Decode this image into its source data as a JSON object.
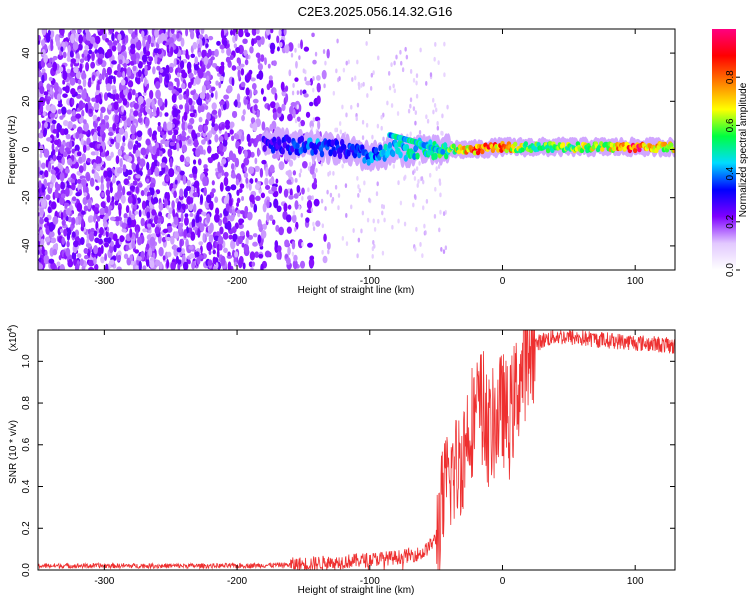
{
  "title": "C2E3.2025.056.14.32.G16",
  "chart_data": [
    {
      "type": "heatmap",
      "xlabel": "Height of straight line (km)",
      "ylabel": "Frequency (Hz)",
      "xlim": [
        -350,
        130
      ],
      "ylim": [
        -50,
        50
      ],
      "xticks": [
        -300,
        -200,
        -100,
        0,
        100
      ],
      "yticks": [
        -40,
        -20,
        0,
        20,
        40
      ],
      "grid": false,
      "colorbar": {
        "label": "Normalized spectral amplitude",
        "range": [
          0.0,
          1.0
        ],
        "ticks": [
          0.0,
          0.2,
          0.4,
          0.6,
          0.8
        ],
        "colors": [
          "#ffffff",
          "#e2c8ff",
          "#7f00ff",
          "#0000ff",
          "#00dcff",
          "#00ff40",
          "#ffff00",
          "#ff7f00",
          "#ff0000",
          "#ff0080"
        ]
      },
      "noise_region": {
        "x": [
          -350,
          -160
        ],
        "y": [
          -50,
          50
        ],
        "amplitude": 0.1
      },
      "ridge": {
        "x": [
          -180,
          -160,
          -140,
          -120,
          -100,
          -90,
          -80,
          -70,
          -60,
          -50,
          -40,
          -30,
          -20,
          -10,
          0,
          20,
          40,
          60,
          80,
          100,
          120,
          130
        ],
        "y": [
          3,
          2,
          1,
          0,
          -3,
          -2,
          0,
          -1,
          1,
          -1,
          0,
          0,
          0,
          0.5,
          1,
          1,
          1,
          1,
          1,
          1,
          1,
          1
        ],
        "amplitude": [
          0.3,
          0.35,
          0.4,
          0.35,
          0.4,
          0.45,
          0.5,
          0.5,
          0.5,
          0.55,
          0.6,
          0.75,
          0.85,
          0.85,
          0.8,
          0.6,
          0.6,
          0.65,
          0.7,
          0.95,
          0.7,
          0.7
        ]
      },
      "branch": {
        "x": [
          -85,
          -65,
          -50,
          -45
        ],
        "y": [
          6,
          3,
          0,
          -1
        ],
        "amplitude": 0.45
      }
    },
    {
      "type": "line",
      "xlabel": "Height of straight line (km)",
      "ylabel": "SNR (10 * v/v)",
      "y_multiplier": "(x10",
      "y_multiplier_exp": "4",
      "y_multiplier_close": ")",
      "xlim": [
        -350,
        130
      ],
      "ylim": [
        0.0,
        1.15
      ],
      "xticks": [
        -300,
        -200,
        -100,
        0,
        100
      ],
      "yticks": [
        0.0,
        0.2,
        0.4,
        0.6,
        0.8,
        1.0
      ],
      "grid": false,
      "series": [
        {
          "color": "#ee3030",
          "x": [
            -350,
            -200,
            -160,
            -120,
            -100,
            -80,
            -60,
            -50,
            -45,
            -40,
            -35,
            -30,
            -25,
            -20,
            -15,
            -10,
            -5,
            0,
            5,
            10,
            15,
            20,
            25,
            30,
            40,
            60,
            80,
            100,
            120,
            130
          ],
          "y": [
            0.02,
            0.02,
            0.025,
            0.04,
            0.05,
            0.06,
            0.08,
            0.15,
            0.32,
            0.45,
            0.48,
            0.55,
            0.7,
            0.75,
            0.8,
            0.65,
            0.72,
            0.78,
            0.7,
            0.85,
            0.95,
            1.05,
            1.08,
            1.1,
            1.12,
            1.11,
            1.1,
            1.09,
            1.08,
            1.07
          ]
        }
      ]
    }
  ]
}
